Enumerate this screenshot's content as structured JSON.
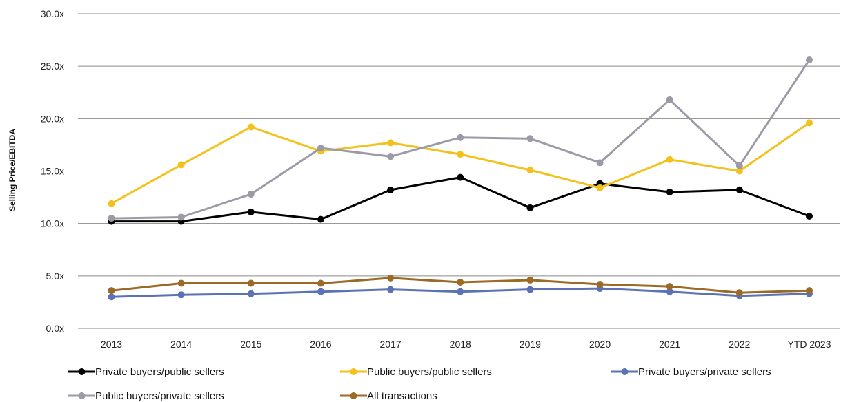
{
  "chart_data": {
    "type": "line",
    "title": "",
    "xlabel": "",
    "ylabel": "Selling Price/EBITDA",
    "ylim": [
      0,
      30
    ],
    "yticks": [
      "0.0x",
      "5.0x",
      "10.0x",
      "15.0x",
      "20.0x",
      "25.0x",
      "30.0x"
    ],
    "categories": [
      "2013",
      "2014",
      "2015",
      "2016",
      "2017",
      "2018",
      "2019",
      "2020",
      "2021",
      "2022",
      "YTD 2023"
    ],
    "grid": "horizontal",
    "legend": "bottom",
    "series": [
      {
        "name": "Private buyers/public sellers",
        "color": "#000000",
        "values": [
          10.2,
          10.2,
          11.1,
          10.4,
          13.2,
          14.4,
          11.5,
          13.8,
          13.0,
          13.2,
          10.7
        ]
      },
      {
        "name": "Public buyers/public sellers",
        "color": "#f2c11a",
        "values": [
          11.9,
          15.6,
          19.2,
          16.9,
          17.7,
          16.6,
          15.1,
          13.4,
          16.1,
          15.0,
          19.6
        ]
      },
      {
        "name": "Private buyers/private sellers",
        "color": "#5b73b5",
        "values": [
          3.0,
          3.2,
          3.3,
          3.5,
          3.7,
          3.5,
          3.7,
          3.8,
          3.5,
          3.1,
          3.3
        ]
      },
      {
        "name": "Public buyers/private sellers",
        "color": "#9b9aa6",
        "values": [
          10.5,
          10.6,
          12.8,
          17.2,
          16.4,
          18.2,
          18.1,
          15.8,
          21.8,
          15.5,
          25.6
        ]
      },
      {
        "name": "All transactions",
        "color": "#9b6a26",
        "values": [
          3.6,
          4.3,
          4.3,
          4.3,
          4.8,
          4.4,
          4.6,
          4.2,
          4.0,
          3.4,
          3.6
        ]
      }
    ]
  }
}
